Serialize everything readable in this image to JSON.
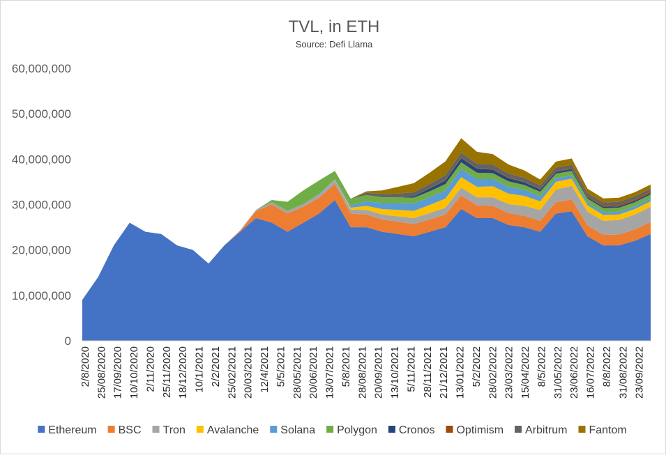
{
  "chart_data": {
    "type": "area",
    "stacked": true,
    "title": "TVL, in ETH",
    "subtitle": "Source: Defi Llama",
    "xlabel": "",
    "ylabel": "",
    "ylim": [
      0,
      60000000
    ],
    "y_ticks": [
      "60,000,000",
      "50,000,000",
      "40,000,000",
      "30,000,000",
      "20,000,000",
      "10,000,000",
      "0"
    ],
    "y_tick_values": [
      60000000,
      50000000,
      40000000,
      30000000,
      20000000,
      10000000,
      0
    ],
    "x_tick_labels": [
      "2/8/2020",
      "25/08/2020",
      "17/09/2020",
      "10/10/2020",
      "2/11/2020",
      "25/11/2020",
      "18/12/2020",
      "10/1/2021",
      "2/2/2021",
      "25/02/2021",
      "20/03/2021",
      "12/4/2021",
      "5/5/2021",
      "28/05/2021",
      "20/06/2021",
      "13/07/2021",
      "5/8/2021",
      "28/08/2021",
      "20/09/2021",
      "13/10/2021",
      "5/11/2021",
      "28/11/2021",
      "21/12/2021",
      "13/01/2022",
      "5/2/2022",
      "28/02/2022",
      "23/03/2022",
      "15/04/2022",
      "8/5/2022",
      "31/05/2022",
      "23/06/2022",
      "16/07/2022",
      "8/8/2022",
      "31/08/2022",
      "23/09/2022"
    ],
    "legend_position": "bottom",
    "series": [
      {
        "name": "Ethereum",
        "color": "#4472c4",
        "values": [
          9000000,
          14000000,
          21000000,
          26000000,
          24000000,
          23500000,
          21000000,
          20000000,
          17000000,
          21000000,
          24000000,
          27000000,
          26000000,
          24000000,
          26000000,
          28000000,
          31000000,
          25000000,
          25000000,
          24000000,
          23500000,
          23000000,
          24000000,
          25000000,
          29000000,
          27000000,
          27000000,
          25500000,
          25000000,
          24000000,
          28000000,
          28500000,
          23000000,
          21000000,
          21000000,
          22000000,
          23500000
        ]
      },
      {
        "name": "BSC",
        "color": "#ed7d31",
        "values": [
          0,
          0,
          0,
          0,
          0,
          0,
          0,
          0,
          0,
          0,
          200000,
          1500000,
          4000000,
          4000000,
          3500000,
          3500000,
          3500000,
          3000000,
          2800000,
          2700000,
          2700000,
          2700000,
          2700000,
          2800000,
          3000000,
          2800000,
          2700000,
          2600000,
          2500000,
          2400000,
          2500000,
          2600000,
          2400000,
          2300000,
          2400000,
          2500000,
          2600000
        ]
      },
      {
        "name": "Tron",
        "color": "#a5a5a5",
        "values": [
          0,
          0,
          0,
          0,
          0,
          0,
          0,
          0,
          0,
          0,
          100000,
          300000,
          500000,
          600000,
          600000,
          700000,
          800000,
          900000,
          1000000,
          1100000,
          1200000,
          1300000,
          1400000,
          1500000,
          1700000,
          1800000,
          1900000,
          2000000,
          2200000,
          2400000,
          2800000,
          3000000,
          3000000,
          3100000,
          3200000,
          3300000,
          3400000
        ]
      },
      {
        "name": "Avalanche",
        "color": "#ffc000",
        "values": [
          0,
          0,
          0,
          0,
          0,
          0,
          0,
          0,
          0,
          0,
          0,
          0,
          0,
          0,
          0,
          0,
          100000,
          400000,
          900000,
          1200000,
          1400000,
          1600000,
          1800000,
          2000000,
          2300000,
          2300000,
          2400000,
          2300000,
          2200000,
          1900000,
          1700000,
          1600000,
          1400000,
          1300000,
          1200000,
          1200000,
          1200000
        ]
      },
      {
        "name": "Solana",
        "color": "#5b9bd5",
        "values": [
          0,
          0,
          0,
          0,
          0,
          0,
          0,
          0,
          0,
          0,
          0,
          0,
          0,
          0,
          0,
          100000,
          200000,
          500000,
          1000000,
          1300000,
          1500000,
          1600000,
          1700000,
          1800000,
          1800000,
          1700000,
          1600000,
          1500000,
          1300000,
          1100000,
          800000,
          700000,
          600000,
          600000,
          600000,
          600000,
          600000
        ]
      },
      {
        "name": "Polygon",
        "color": "#70ad47",
        "values": [
          0,
          0,
          0,
          0,
          0,
          0,
          0,
          0,
          0,
          0,
          0,
          0,
          500000,
          2000000,
          3000000,
          3000000,
          1800000,
          1500000,
          1400000,
          1300000,
          1300000,
          1300000,
          1300000,
          1400000,
          1500000,
          1400000,
          1300000,
          1200000,
          1100000,
          1000000,
          1000000,
          1000000,
          900000,
          900000,
          900000,
          900000,
          900000
        ]
      },
      {
        "name": "Cronos",
        "color": "#264478",
        "values": [
          0,
          0,
          0,
          0,
          0,
          0,
          0,
          0,
          0,
          0,
          0,
          0,
          0,
          0,
          0,
          0,
          0,
          0,
          0,
          0,
          0,
          300000,
          600000,
          800000,
          900000,
          900000,
          800000,
          700000,
          600000,
          500000,
          400000,
          400000,
          300000,
          300000,
          300000,
          300000,
          300000
        ]
      },
      {
        "name": "Optimism",
        "color": "#9e480e",
        "values": [
          0,
          0,
          0,
          0,
          0,
          0,
          0,
          0,
          0,
          0,
          0,
          0,
          0,
          0,
          0,
          0,
          0,
          0,
          0,
          0,
          0,
          0,
          0,
          100000,
          100000,
          100000,
          100000,
          100000,
          100000,
          100000,
          150000,
          150000,
          200000,
          250000,
          300000,
          300000,
          300000
        ]
      },
      {
        "name": "Arbitrum",
        "color": "#636363",
        "values": [
          0,
          0,
          0,
          0,
          0,
          0,
          0,
          0,
          0,
          0,
          0,
          0,
          0,
          0,
          0,
          0,
          0,
          0,
          500000,
          700000,
          800000,
          900000,
          1000000,
          1100000,
          1100000,
          1000000,
          1000000,
          900000,
          900000,
          800000,
          800000,
          800000,
          700000,
          700000,
          700000,
          700000,
          700000
        ]
      },
      {
        "name": "Fantom",
        "color": "#997300",
        "values": [
          0,
          0,
          0,
          0,
          0,
          0,
          0,
          0,
          0,
          0,
          0,
          0,
          0,
          0,
          0,
          0,
          0,
          0,
          300000,
          800000,
          1500000,
          2000000,
          2500000,
          3000000,
          3200000,
          2600000,
          2300000,
          2000000,
          1600000,
          1300000,
          1300000,
          1400000,
          1000000,
          900000,
          900000,
          900000,
          900000
        ]
      }
    ]
  }
}
